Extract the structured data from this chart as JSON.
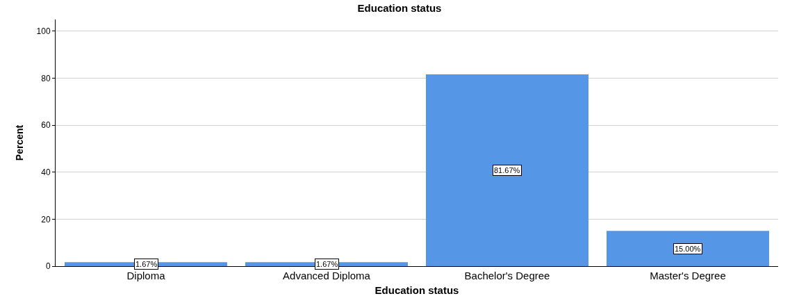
{
  "chart_data": {
    "type": "bar",
    "title": "Education status",
    "xlabel": "Education status",
    "ylabel": "Percent",
    "categories": [
      "Diploma",
      "Advanced Diploma",
      "Bachelor's Degree",
      "Master's Degree"
    ],
    "values": [
      1.67,
      1.67,
      81.67,
      15.0
    ],
    "value_labels": [
      "1.67%",
      "1.67%",
      "81.67%",
      "15.00%"
    ],
    "color": "#5596e6",
    "ylim": [
      0,
      105
    ],
    "yticks": [
      0,
      20,
      40,
      60,
      80,
      100
    ],
    "grid": "y"
  }
}
